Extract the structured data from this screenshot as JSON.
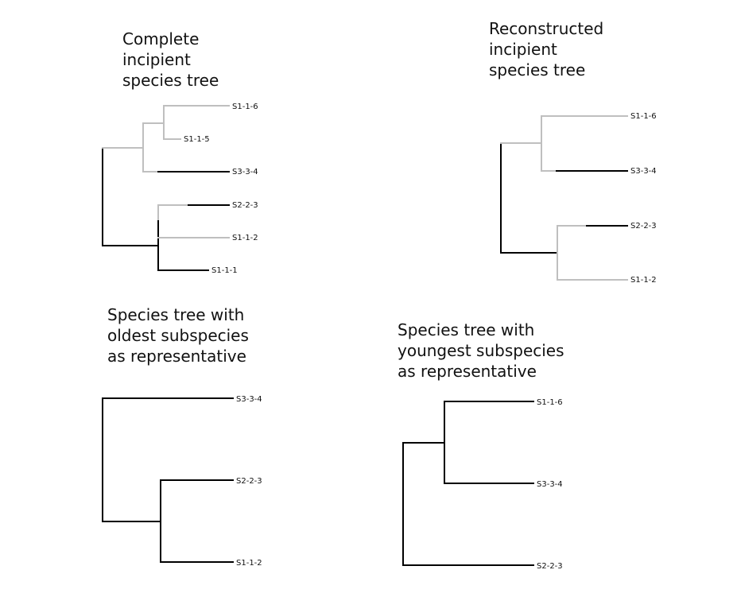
{
  "colors": {
    "black": "#000000",
    "grey": "#bfbfbf"
  },
  "panels": [
    {
      "id": "complete",
      "title_lines": [
        "Complete",
        "incipient",
        "species tree"
      ],
      "tips": [
        "S1-1-6",
        "S1-1-5",
        "S3-3-4",
        "S2-2-3",
        "S1-1-2",
        "S1-1-1"
      ]
    },
    {
      "id": "reconstructed",
      "title_lines": [
        "Reconstructed",
        "incipient",
        "species tree"
      ],
      "tips": [
        "S1-1-6",
        "S3-3-4",
        "S2-2-3",
        "S1-1-2"
      ]
    },
    {
      "id": "oldest",
      "title_lines": [
        "Species tree with",
        "oldest subspecies",
        "as representative"
      ],
      "tips": [
        "S3-3-4",
        "S2-2-3",
        "S1-1-2"
      ]
    },
    {
      "id": "youngest",
      "title_lines": [
        "Species tree with",
        "youngest subspecies",
        "as representative"
      ],
      "tips": [
        "S1-1-6",
        "S3-3-4",
        "S2-2-3"
      ]
    }
  ]
}
